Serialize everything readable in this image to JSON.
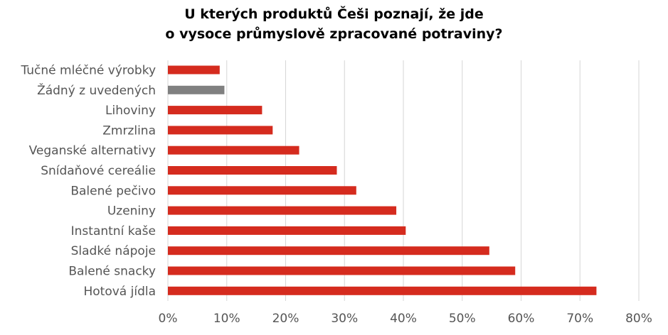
{
  "chart_data": {
    "type": "bar",
    "orientation": "horizontal",
    "title_line1": "U kterých produktů Češi poznají, že jde",
    "title_line2": "o vysoce průmyslově  zpracované potraviny?",
    "categories": [
      "Tučné mléčné výrobky",
      "Žádný z uvedených",
      "Lihoviny",
      "Zmrzlina",
      "Veganské alternativy",
      "Snídaňové cereálie",
      "Balené pečivo",
      "Uzeniny",
      "Instantní kaše",
      "Sladké nápoje",
      "Balené snacky ",
      "Hotová jídla"
    ],
    "values": [
      0.088,
      0.096,
      0.16,
      0.178,
      0.223,
      0.287,
      0.32,
      0.388,
      0.404,
      0.546,
      0.59,
      0.728
    ],
    "bar_colors": [
      "#d52b1e",
      "#808080",
      "#d52b1e",
      "#d52b1e",
      "#d52b1e",
      "#d52b1e",
      "#d52b1e",
      "#d52b1e",
      "#d52b1e",
      "#d52b1e",
      "#d52b1e",
      "#d52b1e"
    ],
    "xlim": [
      0,
      0.8
    ],
    "xticks": [
      0,
      0.1,
      0.2,
      0.3,
      0.4,
      0.5,
      0.6,
      0.7,
      0.8
    ],
    "xtick_labels": [
      "0%",
      "10%",
      "20%",
      "30%",
      "40%",
      "50%",
      "60%",
      "70%",
      "80%"
    ],
    "grid": "vertical",
    "legend": "none"
  }
}
